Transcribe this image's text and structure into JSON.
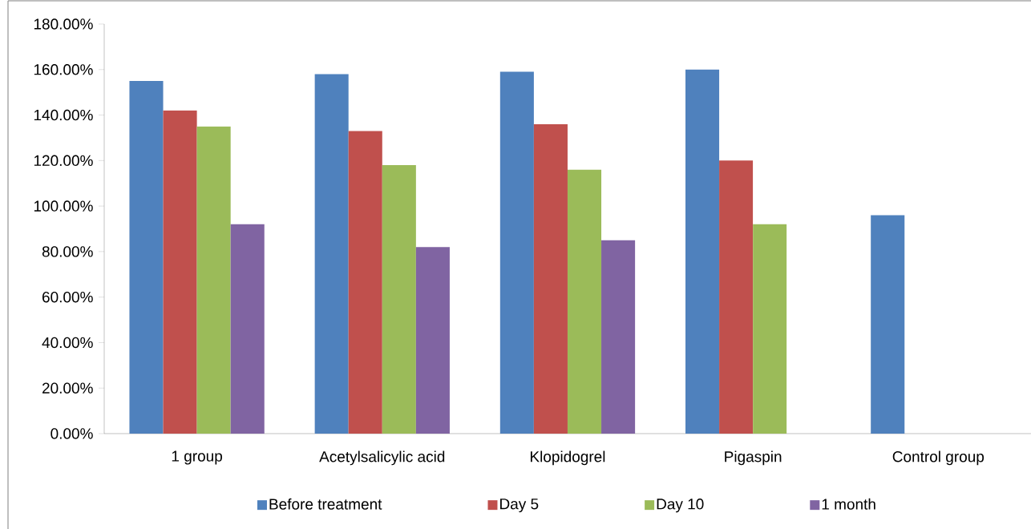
{
  "chart_data": {
    "type": "bar",
    "categories": [
      "1 group",
      "Acetylsalicylic acid",
      "Klopidogrel",
      "Pigaspin",
      "Control group"
    ],
    "series": [
      {
        "name": "Before treatment",
        "color": "#4f81bd",
        "values": [
          155,
          158,
          159,
          160,
          96
        ]
      },
      {
        "name": "Day 5",
        "color": "#c0504d",
        "values": [
          142,
          133,
          136,
          120,
          null
        ]
      },
      {
        "name": "Day 10",
        "color": "#9bbb59",
        "values": [
          135,
          118,
          116,
          92,
          null
        ]
      },
      {
        "name": "1 month",
        "color": "#8064a2",
        "values": [
          92,
          82,
          85,
          null,
          null
        ]
      }
    ],
    "ylim": [
      0,
      180
    ],
    "yticks": [
      {
        "value": 0,
        "label": "0.00%"
      },
      {
        "value": 20,
        "label": "20.00%"
      },
      {
        "value": 40,
        "label": "40.00%"
      },
      {
        "value": 60,
        "label": "60.00%"
      },
      {
        "value": 80,
        "label": "80.00%"
      },
      {
        "value": 100,
        "label": "100.00%"
      },
      {
        "value": 120,
        "label": "120.00%"
      },
      {
        "value": 140,
        "label": "140.00%"
      },
      {
        "value": 160,
        "label": "160.00%"
      },
      {
        "value": 180,
        "label": "180.00%"
      }
    ],
    "grid": false,
    "legend": "bottom"
  }
}
